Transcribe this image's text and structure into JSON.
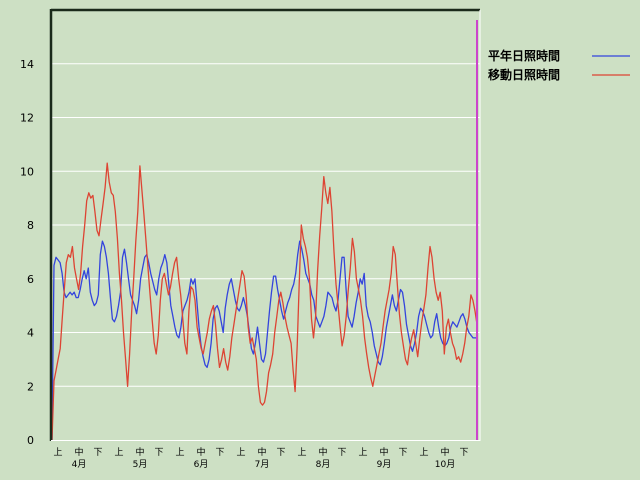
{
  "chart_data": {
    "type": "line",
    "title": "",
    "xlabel": "",
    "ylabel": "",
    "ylim": [
      0,
      16
    ],
    "yticks": [
      0,
      2,
      4,
      6,
      8,
      10,
      12,
      14
    ],
    "grid": "horizontal",
    "legend_position": "top-right",
    "month_labels": [
      "4月",
      "5月",
      "6月",
      "7月",
      "8月",
      "9月",
      "10月"
    ],
    "period_labels": [
      "上",
      "中",
      "下"
    ],
    "colors": {
      "background": "#cde0c4",
      "grid": "#ffffff",
      "axis": "#000000",
      "marker": "#cc44cc"
    },
    "series": [
      {
        "name": "平年日照時間",
        "color": "#3344dd",
        "values": [
          0,
          6.5,
          6.8,
          6.7,
          6.6,
          6.2,
          5.5,
          5.3,
          5.4,
          5.5,
          5.4,
          5.5,
          5.3,
          5.3,
          5.6,
          6.0,
          6.3,
          6.0,
          6.4,
          5.5,
          5.2,
          5.0,
          5.1,
          5.4,
          6.9,
          7.4,
          7.2,
          6.8,
          6.2,
          5.3,
          4.5,
          4.4,
          4.6,
          5.0,
          5.5,
          6.8,
          7.1,
          6.6,
          6.0,
          5.4,
          5.2,
          5.0,
          4.7,
          5.2,
          6.0,
          6.4,
          6.8,
          6.9,
          6.6,
          6.2,
          5.9,
          5.6,
          5.4,
          6.0,
          6.4,
          6.6,
          6.9,
          6.6,
          5.8,
          5.0,
          4.6,
          4.2,
          3.9,
          3.8,
          4.2,
          4.8,
          5.0,
          5.2,
          5.5,
          6.0,
          5.8,
          6.0,
          5.1,
          4.2,
          3.5,
          3.1,
          2.8,
          2.7,
          3.0,
          3.6,
          4.5,
          4.9,
          5.0,
          4.8,
          4.4,
          4.0,
          4.9,
          5.4,
          5.8,
          6.0,
          5.6,
          5.2,
          4.9,
          4.8,
          5.0,
          5.3,
          5.0,
          4.6,
          4.0,
          3.4,
          3.2,
          3.6,
          4.2,
          3.6,
          3.0,
          2.9,
          3.2,
          4.0,
          4.8,
          5.5,
          6.1,
          6.1,
          5.6,
          5.2,
          4.8,
          4.5,
          4.8,
          5.1,
          5.3,
          5.6,
          5.8,
          6.2,
          6.9,
          7.4,
          7.1,
          6.7,
          6.2,
          6.0,
          5.8,
          5.4,
          5.2,
          4.6,
          4.4,
          4.2,
          4.4,
          4.6,
          5.0,
          5.5,
          5.4,
          5.3,
          5.0,
          4.8,
          5.2,
          6.0,
          6.8,
          6.8,
          5.6,
          4.6,
          4.4,
          4.2,
          4.6,
          5.1,
          5.5,
          6.0,
          5.8,
          6.2,
          5.0,
          4.6,
          4.4,
          4.0,
          3.5,
          3.2,
          2.9,
          2.8,
          3.1,
          3.6,
          4.2,
          4.6,
          5.0,
          5.4,
          5.0,
          4.8,
          5.2,
          5.6,
          5.5,
          5.0,
          4.3,
          3.9,
          3.5,
          3.3,
          3.6,
          4.0,
          4.6,
          4.9,
          4.8,
          4.6,
          4.3,
          4.0,
          3.8,
          3.9,
          4.4,
          4.7,
          4.2,
          3.8,
          3.6,
          3.5,
          3.6,
          3.8,
          4.2,
          4.4,
          4.3,
          4.2,
          4.4,
          4.6,
          4.7,
          4.5,
          4.2,
          4.0,
          3.9,
          3.8,
          3.8,
          3.8
        ]
      },
      {
        "name": "移動日照時間",
        "color": "#dd4433",
        "values": [
          0,
          2.2,
          2.6,
          3.0,
          3.4,
          4.5,
          5.6,
          6.6,
          6.9,
          6.8,
          7.2,
          6.4,
          6.0,
          5.6,
          6.2,
          7.2,
          8.0,
          8.9,
          9.2,
          9.0,
          9.1,
          8.5,
          7.8,
          7.6,
          8.2,
          8.8,
          9.4,
          10.3,
          9.6,
          9.2,
          9.1,
          8.5,
          7.5,
          6.2,
          5.2,
          4.0,
          3.0,
          2.0,
          3.2,
          4.8,
          6.0,
          7.4,
          8.5,
          10.2,
          9.3,
          8.4,
          7.4,
          6.4,
          5.4,
          4.5,
          3.6,
          3.2,
          3.9,
          5.2,
          6.0,
          6.2,
          5.8,
          5.4,
          5.7,
          6.2,
          6.6,
          6.8,
          6.0,
          5.4,
          4.5,
          3.6,
          3.2,
          4.8,
          5.7,
          5.6,
          5.2,
          4.2,
          3.8,
          3.4,
          3.2,
          3.6,
          4.0,
          4.5,
          4.8,
          5.0,
          4.3,
          3.4,
          2.7,
          3.0,
          3.4,
          2.9,
          2.6,
          3.1,
          3.8,
          4.3,
          4.8,
          5.3,
          5.8,
          6.3,
          6.1,
          5.4,
          4.2,
          3.6,
          3.8,
          3.4,
          3.0,
          2.0,
          1.4,
          1.3,
          1.4,
          1.8,
          2.5,
          2.8,
          3.2,
          4.0,
          4.6,
          5.2,
          5.5,
          5.1,
          4.6,
          4.2,
          3.9,
          3.6,
          2.6,
          1.8,
          3.5,
          5.8,
          8.0,
          7.5,
          7.2,
          6.8,
          6.0,
          4.5,
          3.8,
          4.6,
          6.3,
          7.6,
          8.6,
          9.8,
          9.2,
          8.8,
          9.4,
          8.5,
          7.0,
          5.8,
          5.0,
          4.2,
          3.5,
          3.9,
          4.6,
          5.6,
          6.4,
          7.5,
          7.0,
          6.0,
          5.6,
          5.2,
          4.6,
          3.8,
          3.2,
          2.7,
          2.3,
          2.0,
          2.4,
          2.8,
          3.2,
          3.6,
          4.2,
          4.8,
          5.2,
          5.6,
          6.2,
          7.2,
          6.9,
          5.8,
          4.7,
          4.0,
          3.5,
          3.0,
          2.8,
          3.4,
          3.8,
          4.1,
          3.6,
          3.1,
          3.8,
          4.4,
          4.9,
          5.4,
          6.4,
          7.2,
          6.8,
          6.0,
          5.5,
          5.2,
          5.5,
          4.8,
          3.2,
          4.2,
          4.5,
          4.0,
          3.6,
          3.4,
          3.0,
          3.1,
          2.9,
          3.2,
          3.6,
          4.2,
          4.6,
          5.4,
          5.2,
          4.8,
          4.3
        ]
      }
    ]
  }
}
